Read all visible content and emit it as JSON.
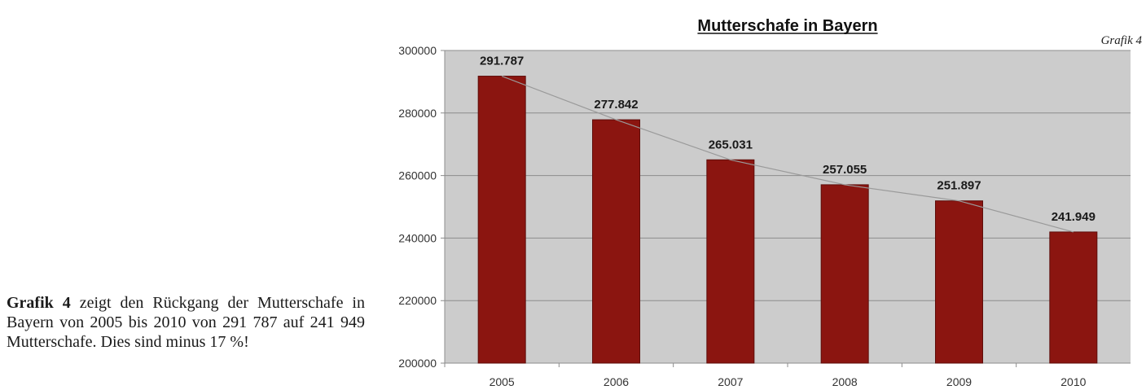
{
  "caption": {
    "lead": "Grafik 4",
    "text": " zeigt den Rückgang der Mutterschafe in Bayern von 2005 bis 2010 von 291 787 auf 241 949 Mutterschafe. Dies sind minus 17 %!"
  },
  "figure_note": "Grafik 4",
  "colors": {
    "bar": "#8b1510",
    "plot_bg": "#cccccc",
    "line": "#9a9a9a",
    "grid": "#8c8c8c"
  },
  "chart_data": {
    "type": "bar",
    "title": "Mutterschafe in Bayern",
    "categories": [
      "2005",
      "2006",
      "2007",
      "2008",
      "2009",
      "2010"
    ],
    "values": [
      291787,
      277842,
      265031,
      257055,
      251897,
      241949
    ],
    "value_labels": [
      "291.787",
      "277.842",
      "265.031",
      "257.055",
      "251.897",
      "241.949"
    ],
    "yticks": [
      "200000",
      "220000",
      "240000",
      "260000",
      "280000",
      "300000"
    ],
    "ylim": [
      200000,
      300000
    ],
    "grid": true,
    "overlay_line": true,
    "xlabel": "",
    "ylabel": ""
  }
}
